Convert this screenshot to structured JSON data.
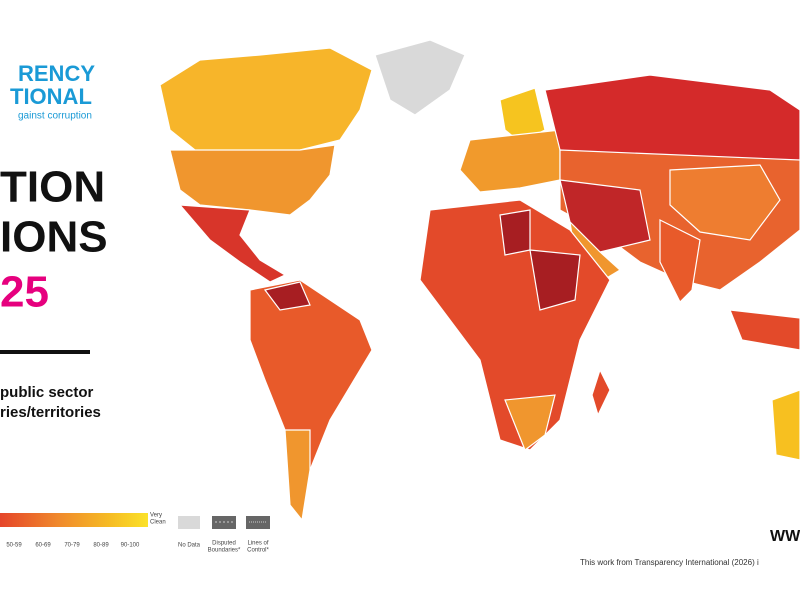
{
  "header": {
    "logo_line1": "RENCY",
    "logo_line2": "TIONAL",
    "tagline": "gainst corruption"
  },
  "title": {
    "line1": "TION",
    "line2": "IONS",
    "year": "25"
  },
  "subtitle": {
    "line1": "public sector",
    "line2": "ries/territories"
  },
  "legend": {
    "scores": [
      "50-59",
      "60-69",
      "70-79",
      "80-89",
      "90-100"
    ],
    "very_clean": [
      "Very",
      "Clean"
    ],
    "no_data": "No Data",
    "disputed": [
      "Disputed",
      "Boundaries*"
    ],
    "lines_of_control": [
      "Lines of",
      "Control*"
    ]
  },
  "footer": {
    "url": "WW",
    "credit": "This work from Transparency International (2026) i"
  }
}
